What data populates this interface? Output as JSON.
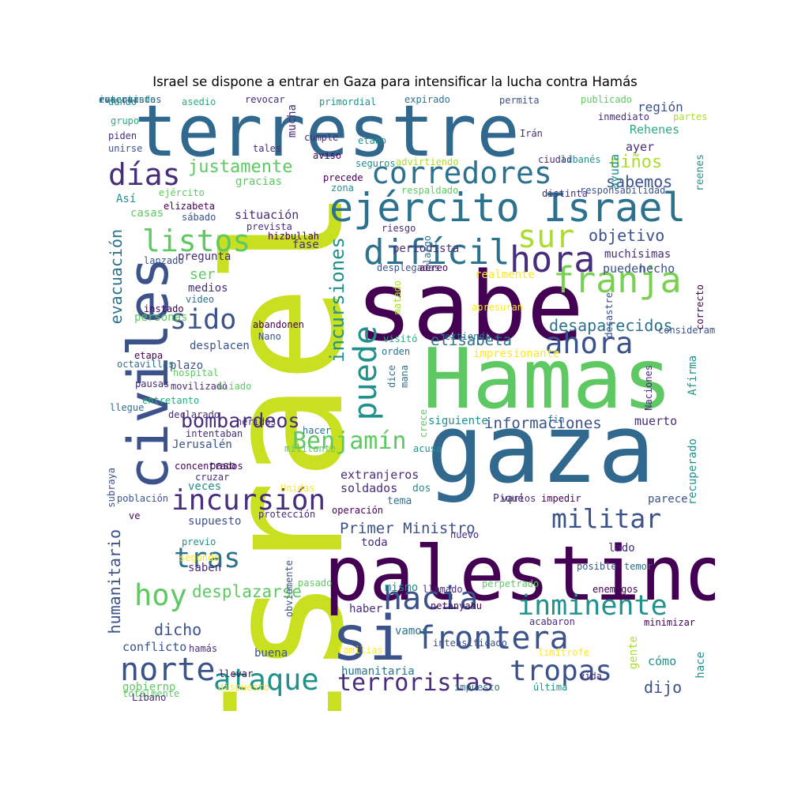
{
  "title": "Israel se dispone a entrar en Gaza para intensificar la lucha contra Hamás",
  "colors": {
    "dark_purple": "#440154",
    "indigo": "#472d7b",
    "blue": "#3b528b",
    "steel": "#2c728e",
    "teal": "#21918c",
    "green_teal": "#28ae80",
    "green": "#5ec962",
    "lime": "#addc30",
    "yellow": "#fde725",
    "yellow_green": "#c8e020"
  },
  "words": [
    {
      "text": "terrestre",
      "c": "#31688e"
    },
    {
      "text": "Israel",
      "c": "#c8e020"
    },
    {
      "text": "sabe",
      "c": "#440154"
    },
    {
      "text": "Hamas",
      "c": "#5ec962"
    },
    {
      "text": "gaza",
      "c": "#31688e"
    },
    {
      "text": "palestinos",
      "c": "#440154"
    },
    {
      "text": "civiles",
      "c": "#3b528b"
    },
    {
      "text": "si",
      "c": "#3b528b"
    },
    {
      "text": "ejército Israel",
      "c": "#2c728e"
    },
    {
      "text": "corredores",
      "c": "#2c728e"
    },
    {
      "text": "días",
      "c": "#472d7b"
    },
    {
      "text": "franja",
      "c": "#7ad151"
    },
    {
      "text": "difícil",
      "c": "#2c728e"
    },
    {
      "text": "hora",
      "c": "#472d7b"
    },
    {
      "text": "sur",
      "c": "#addc30"
    },
    {
      "text": "listos",
      "c": "#5ec962"
    },
    {
      "text": "ahora",
      "c": "#3b528b"
    },
    {
      "text": "incursiones",
      "c": "#21918c"
    },
    {
      "text": "puede",
      "c": "#21918c"
    },
    {
      "text": "incursión",
      "c": "#472d7b"
    },
    {
      "text": "Benjamín",
      "c": "#5ec962"
    },
    {
      "text": "militar",
      "c": "#3b528b"
    },
    {
      "text": "bombardeos",
      "c": "#472d7b"
    },
    {
      "text": "hacia",
      "c": "#3b528b"
    },
    {
      "text": "inminente",
      "c": "#21918c"
    },
    {
      "text": "frontera",
      "c": "#3b528b"
    },
    {
      "text": "tropas",
      "c": "#3b528b"
    },
    {
      "text": "ataque",
      "c": "#21918c"
    },
    {
      "text": "norte",
      "c": "#3b528b"
    },
    {
      "text": "hoy",
      "c": "#5ec962"
    },
    {
      "text": "tras",
      "c": "#2c728e"
    },
    {
      "text": "terroristas",
      "c": "#472d7b"
    },
    {
      "text": "sido",
      "c": "#3b528b"
    },
    {
      "text": "justamente",
      "c": "#5ec962"
    },
    {
      "text": "desplazarse",
      "c": "#5ec962"
    },
    {
      "text": "niños",
      "c": "#addc30"
    },
    {
      "text": "sabemos",
      "c": "#3b528b"
    },
    {
      "text": "objetivo",
      "c": "#3b528b"
    },
    {
      "text": "elisabeta",
      "c": "#2c728e"
    },
    {
      "text": "desaparecidos",
      "c": "#2c728e"
    },
    {
      "text": "informaciones",
      "c": "#3b528b"
    },
    {
      "text": "Primer Ministro",
      "c": "#3b528b"
    },
    {
      "text": "dicho",
      "c": "#3b528b"
    },
    {
      "text": "dijo",
      "c": "#3b528b"
    },
    {
      "text": "evacuación",
      "c": "#2c728e"
    },
    {
      "text": "humanitario",
      "c": "#3b528b"
    },
    {
      "text": "situación",
      "c": "#472d7b"
    },
    {
      "text": "región",
      "c": "#3b528b"
    },
    {
      "text": "Rehenes",
      "c": "#28ae80"
    },
    {
      "text": "ayer",
      "c": "#472d7b"
    },
    {
      "text": "ayuda",
      "c": "#21918c"
    },
    {
      "text": "muchísimas",
      "c": "#472d7b"
    },
    {
      "text": "hecho",
      "c": "#3b528b"
    },
    {
      "text": "pueden",
      "c": "#3b528b"
    },
    {
      "text": "periodista",
      "c": "#472d7b"
    },
    {
      "text": "realmente",
      "c": "#fde725"
    },
    {
      "text": "pregunta",
      "c": "#472d7b"
    },
    {
      "text": "ser",
      "c": "#5ec962"
    },
    {
      "text": "medios",
      "c": "#472d7b"
    },
    {
      "text": "fase",
      "c": "#472d7b"
    },
    {
      "text": "siguiente",
      "c": "#21918c"
    },
    {
      "text": "muerto",
      "c": "#472d7b"
    },
    {
      "text": "extranjeros",
      "c": "#472d7b"
    },
    {
      "text": "soldados",
      "c": "#472d7b"
    },
    {
      "text": "tema",
      "c": "#2c728e"
    },
    {
      "text": "dos",
      "c": "#21918c"
    },
    {
      "text": "Piqué",
      "c": "#472d7b"
    },
    {
      "text": "parece",
      "c": "#3b528b"
    },
    {
      "text": "recuperado",
      "c": "#21918c"
    },
    {
      "text": "Afirma",
      "c": "#21918c"
    },
    {
      "text": "impresionante",
      "c": "#fde725"
    },
    {
      "text": "desplacen",
      "c": "#3b528b"
    },
    {
      "text": "plazo",
      "c": "#3b528b"
    },
    {
      "text": "personas",
      "c": "#5ec962"
    },
    {
      "text": "conflicto",
      "c": "#3b528b"
    },
    {
      "text": "saben",
      "c": "#472d7b"
    },
    {
      "text": "buena",
      "c": "#3b528b"
    },
    {
      "text": "gobierno",
      "c": "#5ec962"
    },
    {
      "text": "gente",
      "c": "#addc30"
    },
    {
      "text": "cómo",
      "c": "#21918c"
    },
    {
      "text": "hace",
      "c": "#21918c"
    },
    {
      "text": "humanitaria",
      "c": "#2c728e"
    },
    {
      "text": "toda",
      "c": "#472d7b"
    },
    {
      "text": "lado",
      "c": "#472d7b"
    },
    {
      "text": "haber",
      "c": "#472d7b"
    },
    {
      "text": "mismo",
      "c": "#21918c"
    },
    {
      "text": "vamos",
      "c": "#2c728e"
    },
    {
      "text": "Así",
      "c": "#21918c"
    },
    {
      "text": "casas",
      "c": "#5ec962"
    },
    {
      "text": "mucha",
      "c": "#472d7b"
    },
    {
      "text": "supuesto",
      "c": "#3b528b"
    },
    {
      "text": "Jerusalén",
      "c": "#3b528b"
    },
    {
      "text": "paso",
      "c": "#472d7b"
    },
    {
      "text": "veces",
      "c": "#21918c"
    },
    {
      "text": "gracias",
      "c": "#5ec962"
    },
    {
      "text": "reenes",
      "c": "#21918c"
    },
    {
      "text": "dando",
      "c": "#21918c"
    },
    {
      "text": "asedio",
      "c": "#28ae80"
    },
    {
      "text": "revocar",
      "c": "#472d7b"
    },
    {
      "text": "primordial",
      "c": "#21918c"
    },
    {
      "text": "expirado",
      "c": "#2c728e"
    },
    {
      "text": "permita",
      "c": "#3b528b"
    },
    {
      "text": "publicado",
      "c": "#5ec962"
    },
    {
      "text": "grupo",
      "c": "#28ae80"
    },
    {
      "text": "inmediato",
      "c": "#472d7b"
    },
    {
      "text": "partes",
      "c": "#addc30"
    },
    {
      "text": "piden",
      "c": "#472d7b"
    },
    {
      "text": "unirse",
      "c": "#3b528b"
    },
    {
      "text": "tales",
      "c": "#472d7b"
    },
    {
      "text": "cumple",
      "c": "#472d7b"
    },
    {
      "text": "etano",
      "c": "#21918c"
    },
    {
      "text": "Irán",
      "c": "#472d7b"
    },
    {
      "text": "aviso",
      "c": "#440154"
    },
    {
      "text": "advirtiendo",
      "c": "#addc30"
    },
    {
      "text": "ciudad",
      "c": "#472d7b"
    },
    {
      "text": "libanés",
      "c": "#21918c"
    },
    {
      "text": "seguros",
      "c": "#21918c"
    },
    {
      "text": "precede",
      "c": "#440154"
    },
    {
      "text": "zona",
      "c": "#21918c"
    },
    {
      "text": "respaldado",
      "c": "#5ec962"
    },
    {
      "text": "distinta",
      "c": "#472d7b"
    },
    {
      "text": "responsabilidad",
      "c": "#3b528b"
    },
    {
      "text": "ejército",
      "c": "#5ec962"
    },
    {
      "text": "elizabeta",
      "c": "#440154"
    },
    {
      "text": "sábado",
      "c": "#3b528b"
    },
    {
      "text": "prevista",
      "c": "#472d7b"
    },
    {
      "text": "hizbullah",
      "c": "#440154"
    },
    {
      "text": "riesgo",
      "c": "#472d7b"
    },
    {
      "text": "largo",
      "c": "#2c728e"
    },
    {
      "text": "lanzado",
      "c": "#3b528b"
    },
    {
      "text": "desplegadas",
      "c": "#3b528b"
    },
    {
      "text": "aéreo",
      "c": "#440154"
    },
    {
      "text": "instado",
      "c": "#440154"
    },
    {
      "text": "video",
      "c": "#2c728e"
    },
    {
      "text": "matado",
      "c": "#addc30"
    },
    {
      "text": "apresuran",
      "c": "#fde725"
    },
    {
      "text": "desastre",
      "c": "#3b528b"
    },
    {
      "text": "consideramos",
      "c": "#3b528b"
    },
    {
      "text": "correcto",
      "c": "#440154"
    },
    {
      "text": "abandonen",
      "c": "#440154"
    },
    {
      "text": "Nano",
      "c": "#3b528b"
    },
    {
      "text": "etapa",
      "c": "#440154"
    },
    {
      "text": "visitó",
      "c": "#28ae80"
    },
    {
      "text": "extienda",
      "c": "#2c728e"
    },
    {
      "text": "orden",
      "c": "#2c728e"
    },
    {
      "text": "octavillas",
      "c": "#2c728e"
    },
    {
      "text": "hospital",
      "c": "#5ec962"
    },
    {
      "text": "mana",
      "c": "#2c728e"
    },
    {
      "text": "dice",
      "c": "#2c728e"
    },
    {
      "text": "Naciones",
      "c": "#472d7b"
    },
    {
      "text": "pausas",
      "c": "#472d7b"
    },
    {
      "text": "movilizado",
      "c": "#472d7b"
    },
    {
      "text": "llegue",
      "c": "#2c728e"
    },
    {
      "text": "entretanto",
      "c": "#28ae80"
    },
    {
      "text": "Aliado",
      "c": "#5ec962"
    },
    {
      "text": "crece",
      "c": "#5ec962"
    },
    {
      "text": "declarado",
      "c": "#472d7b"
    },
    {
      "text": "heridos",
      "c": "#472d7b"
    },
    {
      "text": "hacer",
      "c": "#2c728e"
    },
    {
      "text": "fin",
      "c": "#2c728e"
    },
    {
      "text": "intentaban",
      "c": "#472d7b"
    },
    {
      "text": "acusa",
      "c": "#21918c"
    },
    {
      "text": "militante",
      "c": "#5ec962"
    },
    {
      "text": "subraya",
      "c": "#3b528b"
    },
    {
      "text": "concentrados",
      "c": "#440154"
    },
    {
      "text": "cruzar",
      "c": "#472d7b"
    },
    {
      "text": "Unidas",
      "c": "#fde725"
    },
    {
      "text": "población",
      "c": "#3b528b"
    },
    {
      "text": "varios",
      "c": "#472d7b"
    },
    {
      "text": "impedir",
      "c": "#440154"
    },
    {
      "text": "ve",
      "c": "#440154"
    },
    {
      "text": "protección",
      "c": "#472d7b"
    },
    {
      "text": "operación",
      "c": "#440154"
    },
    {
      "text": "nuevo",
      "c": "#472d7b"
    },
    {
      "text": "obviamente",
      "c": "#3b528b"
    },
    {
      "text": "previo",
      "c": "#21918c"
    },
    {
      "text": "segundo",
      "c": "#fde725"
    },
    {
      "text": "posible",
      "c": "#3b528b"
    },
    {
      "text": "temor",
      "c": "#2c728e"
    },
    {
      "text": "pasado",
      "c": "#5ec962"
    },
    {
      "text": "llamado",
      "c": "#472d7b"
    },
    {
      "text": "enemigos",
      "c": "#440154"
    },
    {
      "text": "netanyahu",
      "c": "#440154"
    },
    {
      "text": "perpetrado",
      "c": "#5ec962"
    },
    {
      "text": "acabaron",
      "c": "#472d7b"
    },
    {
      "text": "minimizar",
      "c": "#440154"
    },
    {
      "text": "limítrofe",
      "c": "#fde725"
    },
    {
      "text": "intensificado",
      "c": "#3b528b"
    },
    {
      "text": "hamás",
      "c": "#472d7b"
    },
    {
      "text": "familias",
      "c": "#fde725"
    },
    {
      "text": "llevar",
      "c": "#440154"
    },
    {
      "text": "vida",
      "c": "#472d7b"
    },
    {
      "text": "totalmente",
      "c": "#5ec962"
    },
    {
      "text": "dispuesto",
      "c": "#fde725"
    },
    {
      "text": "impuesto",
      "c": "#2c728e"
    },
    {
      "text": "última",
      "c": "#21918c"
    },
    {
      "text": "Líbano",
      "c": "#472d7b"
    },
    {
      "text": "evacuar",
      "c": "#3b528b"
    },
    {
      "text": "reservistas",
      "c": "#3b528b"
    },
    {
      "text": "intentando",
      "c": "#21918c"
    }
  ]
}
